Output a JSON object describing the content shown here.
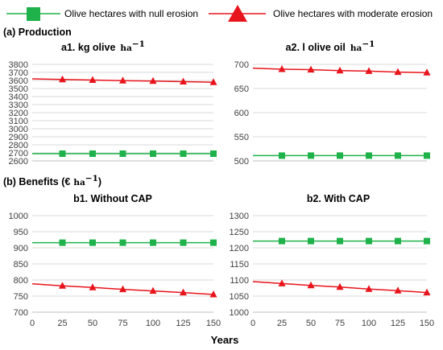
{
  "colors": {
    "null_erosion": "#1fb24a",
    "moderate_erosion": "#e8141b",
    "grid": "#d9d9d9",
    "tick": "#404040"
  },
  "legend": {
    "position": "top",
    "null_label": "Olive hectares with null erosion",
    "moderate_label": "Olive hectares with moderate erosion"
  },
  "sections": {
    "production": "(a) Production",
    "benefits": "(b) Benefits (€",
    "benefits_unit": "ha",
    "benefits_unit_exp": "−1",
    "benefits_close": ")"
  },
  "x_axis_title": "Years",
  "chart_data": [
    {
      "type": "line",
      "title": "a1. kg olive",
      "title_unit": "ha",
      "title_unit_exp": "−1",
      "x": [
        25,
        50,
        75,
        100,
        125,
        150
      ],
      "xlim": [
        0,
        150
      ],
      "ylim": [
        2600,
        3800
      ],
      "yticks": [
        2600,
        2700,
        2800,
        2900,
        3000,
        3100,
        3200,
        3300,
        3400,
        3500,
        3600,
        3700,
        3800
      ],
      "grid": true,
      "series": [
        {
          "name": "Olive hectares with null erosion",
          "marker": "square",
          "start": 2690,
          "values": [
            2690,
            2690,
            2690,
            2690,
            2690,
            2690
          ]
        },
        {
          "name": "Olive hectares with moderate erosion",
          "marker": "triangle",
          "start": 3620,
          "values": [
            3612,
            3605,
            3598,
            3592,
            3585,
            3578
          ]
        }
      ]
    },
    {
      "type": "line",
      "title": "a2. l olive oil",
      "title_unit": "ha",
      "title_unit_exp": "−1",
      "x": [
        25,
        50,
        75,
        100,
        125,
        150
      ],
      "xlim": [
        0,
        150
      ],
      "ylim": [
        500,
        700
      ],
      "yticks": [
        500,
        550,
        600,
        650,
        700
      ],
      "grid": true,
      "series": [
        {
          "name": "Olive hectares with null erosion",
          "marker": "square",
          "start": 511,
          "values": [
            511,
            511,
            511,
            511,
            511,
            511
          ]
        },
        {
          "name": "Olive hectares with moderate erosion",
          "marker": "triangle",
          "start": 692,
          "values": [
            690,
            689,
            687,
            686,
            684,
            683
          ]
        }
      ]
    },
    {
      "type": "line",
      "title": "b1. Without CAP",
      "x": [
        25,
        50,
        75,
        100,
        125,
        150
      ],
      "xlim": [
        0,
        150
      ],
      "xticks": [
        0,
        25,
        50,
        75,
        100,
        125,
        150
      ],
      "ylim": [
        700,
        1000
      ],
      "yticks": [
        700,
        750,
        800,
        850,
        900,
        950,
        1000
      ],
      "grid": true,
      "series": [
        {
          "name": "Olive hectares with null erosion",
          "marker": "square",
          "start": 916,
          "values": [
            916,
            916,
            916,
            916,
            916,
            916
          ]
        },
        {
          "name": "Olive hectares with moderate erosion",
          "marker": "triangle",
          "start": 788,
          "values": [
            782,
            777,
            771,
            766,
            761,
            755
          ]
        }
      ]
    },
    {
      "type": "line",
      "title": "b2. With CAP",
      "x": [
        25,
        50,
        75,
        100,
        125,
        150
      ],
      "xlim": [
        0,
        150
      ],
      "xticks": [
        0,
        25,
        50,
        75,
        100,
        125,
        150
      ],
      "ylim": [
        1000,
        1300
      ],
      "yticks": [
        1000,
        1050,
        1100,
        1150,
        1200,
        1250,
        1300
      ],
      "grid": true,
      "series": [
        {
          "name": "Olive hectares with null erosion",
          "marker": "square",
          "start": 1221,
          "values": [
            1221,
            1221,
            1221,
            1221,
            1221,
            1221
          ]
        },
        {
          "name": "Olive hectares with moderate erosion",
          "marker": "triangle",
          "start": 1095,
          "values": [
            1089,
            1083,
            1078,
            1072,
            1067,
            1061
          ]
        }
      ]
    }
  ]
}
